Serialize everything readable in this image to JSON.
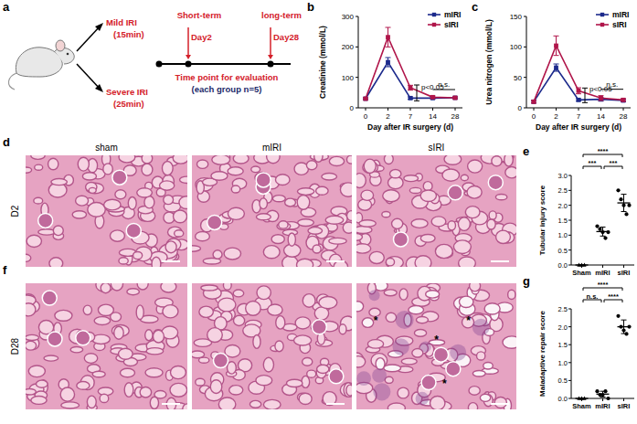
{
  "chart_data": [
    {
      "panel": "b",
      "type": "line",
      "x_label": "Day after IR surgery (d)",
      "y_label": "Creatinine (mmol/L)",
      "categories": [
        "0",
        "2",
        "7",
        "14",
        "28"
      ],
      "ylim": [
        0,
        300
      ],
      "yticks": [
        0,
        100,
        200,
        300
      ],
      "legend": "upper right",
      "marker": "square",
      "series": [
        {
          "name": "mIRI",
          "color": "#1c2a8c",
          "values": [
            30,
            150,
            32,
            32,
            33
          ],
          "errors": [
            3,
            15,
            4,
            3,
            3
          ]
        },
        {
          "name": "sIRI",
          "color": "#b0154a",
          "values": [
            30,
            232,
            66,
            35,
            33
          ],
          "errors": [
            3,
            32,
            8,
            4,
            3
          ]
        }
      ],
      "annotations": [
        {
          "text": "p<0.05",
          "at": "7"
        },
        {
          "text": "n.s.",
          "from": "14",
          "to": "28"
        }
      ]
    },
    {
      "panel": "c",
      "type": "line",
      "x_label": "Day after IR surgery (d)",
      "y_label": "Urea nitrogen (mmol/L)",
      "categories": [
        "0",
        "2",
        "7",
        "14",
        "28"
      ],
      "ylim": [
        0,
        150
      ],
      "yticks": [
        0,
        50,
        100,
        150
      ],
      "legend": "upper right",
      "marker": "square",
      "series": [
        {
          "name": "mIRI",
          "color": "#1c2a8c",
          "values": [
            10,
            66,
            13,
            14,
            12
          ],
          "errors": [
            2,
            6,
            2,
            3,
            2
          ]
        },
        {
          "name": "sIRI",
          "color": "#b0154a",
          "values": [
            10,
            102,
            28,
            16,
            13
          ],
          "errors": [
            2,
            16,
            5,
            4,
            2
          ]
        }
      ],
      "annotations": [
        {
          "text": "p<0.05",
          "at": "7"
        },
        {
          "text": "n.s.",
          "from": "14",
          "to": "28"
        }
      ]
    },
    {
      "panel": "e",
      "type": "dot",
      "y_label": "Tubular injury score",
      "color": "#000000",
      "ylim": [
        0,
        3
      ],
      "yticks": [
        {
          "value": 0,
          "label": "0.0"
        },
        {
          "value": 0.5,
          "label": "0.5"
        },
        {
          "value": 1,
          "label": "1.0"
        },
        {
          "value": 1.5,
          "label": "1.5"
        },
        {
          "value": 2,
          "label": "2.0"
        },
        {
          "value": 2.5,
          "label": "2.5"
        },
        {
          "value": 3,
          "label": "3.0"
        }
      ],
      "series": [
        {
          "name": "Sham",
          "marker": "triangle",
          "values": [
            0,
            0,
            0
          ],
          "mean": 0,
          "sd": 0
        },
        {
          "name": "mIRI",
          "marker": "circle",
          "values": [
            1.3,
            1.2,
            1.1,
            0.9,
            1.1
          ],
          "mean": 1.12,
          "sd": 0.15
        },
        {
          "name": "sIRI",
          "marker": "circle",
          "values": [
            2.5,
            2.2,
            2.0,
            1.7,
            2.0
          ],
          "mean": 2.08,
          "sd": 0.29
        }
      ],
      "comparisons": [
        {
          "from": "Sham",
          "to": "mIRI",
          "label": "***"
        },
        {
          "from": "mIRI",
          "to": "sIRI",
          "label": "***"
        },
        {
          "from": "Sham",
          "to": "sIRI",
          "label": "****"
        }
      ]
    },
    {
      "panel": "g",
      "type": "dot",
      "y_label": "Maladaptive repair score",
      "color": "#000000",
      "ylim": [
        0,
        2.5
      ],
      "yticks": [
        {
          "value": 0,
          "label": "0.0"
        },
        {
          "value": 0.5,
          "label": "0.5"
        },
        {
          "value": 1,
          "label": "1.0"
        },
        {
          "value": 1.5,
          "label": "1.5"
        },
        {
          "value": 2,
          "label": "2.0"
        },
        {
          "value": 2.5,
          "label": "2.5"
        }
      ],
      "series": [
        {
          "name": "Sham",
          "marker": "triangle",
          "values": [
            0,
            0,
            0
          ],
          "mean": 0,
          "sd": 0
        },
        {
          "name": "mIRI",
          "marker": "circle",
          "values": [
            0.2,
            0.1,
            0.1,
            0.2,
            0.0
          ],
          "mean": 0.12,
          "sd": 0.08
        },
        {
          "name": "sIRI",
          "marker": "circle",
          "values": [
            2.3,
            2.0,
            1.9,
            1.8,
            2.0
          ],
          "mean": 2.0,
          "sd": 0.19
        }
      ],
      "comparisons": [
        {
          "from": "Sham",
          "to": "mIRI",
          "label": "n.s."
        },
        {
          "from": "mIRI",
          "to": "sIRI",
          "label": "****"
        },
        {
          "from": "Sham",
          "to": "sIRI",
          "label": "****"
        }
      ]
    }
  ],
  "design": {
    "panel": "a",
    "groups": [
      {
        "label": "Mild IRI",
        "detail": "(15min)"
      },
      {
        "label": "Severe IRI",
        "detail": "(25min)"
      }
    ],
    "timepoints": [
      {
        "phase": "Short-term",
        "day": "Day2"
      },
      {
        "phase": "long-term",
        "day": "Day28"
      }
    ],
    "caption": "Time point for evaluation",
    "note": "(each group n=5)"
  },
  "micrographs": {
    "columns": [
      "sham",
      "mIRI",
      "sIRI"
    ],
    "rows": [
      {
        "panel": "d",
        "label": "D2"
      },
      {
        "panel": "f",
        "label": "D28",
        "asterisks": [
          "*",
          "*",
          "*",
          "*"
        ]
      }
    ]
  }
}
